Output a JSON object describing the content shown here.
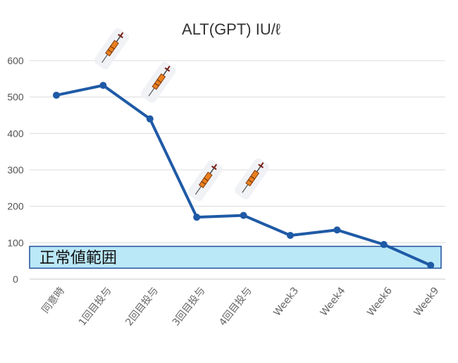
{
  "chart_data": {
    "type": "line",
    "title": "ALT(GPT) IU/ℓ",
    "categories": [
      "同意時",
      "1回目投与",
      "2回目投与",
      "3回目投与",
      "4回目投与",
      "Week3",
      "Week4",
      "Week6",
      "Week9"
    ],
    "values": [
      505,
      532,
      440,
      170,
      175,
      120,
      135,
      95,
      38
    ],
    "ylim": [
      0,
      600
    ],
    "yticks": [
      0,
      100,
      200,
      300,
      400,
      500,
      600
    ],
    "grid": true,
    "series_color": "#1f5aa6",
    "reference_band": {
      "label": "正常値範囲",
      "range": [
        30,
        90
      ],
      "color": "#aee4f6",
      "border_color": "#1f4f9c"
    },
    "injection_marker": {
      "icon": "syringe-icon",
      "categories": [
        "1回目投与",
        "2回目投与",
        "3回目投与",
        "4回目投与"
      ]
    }
  }
}
